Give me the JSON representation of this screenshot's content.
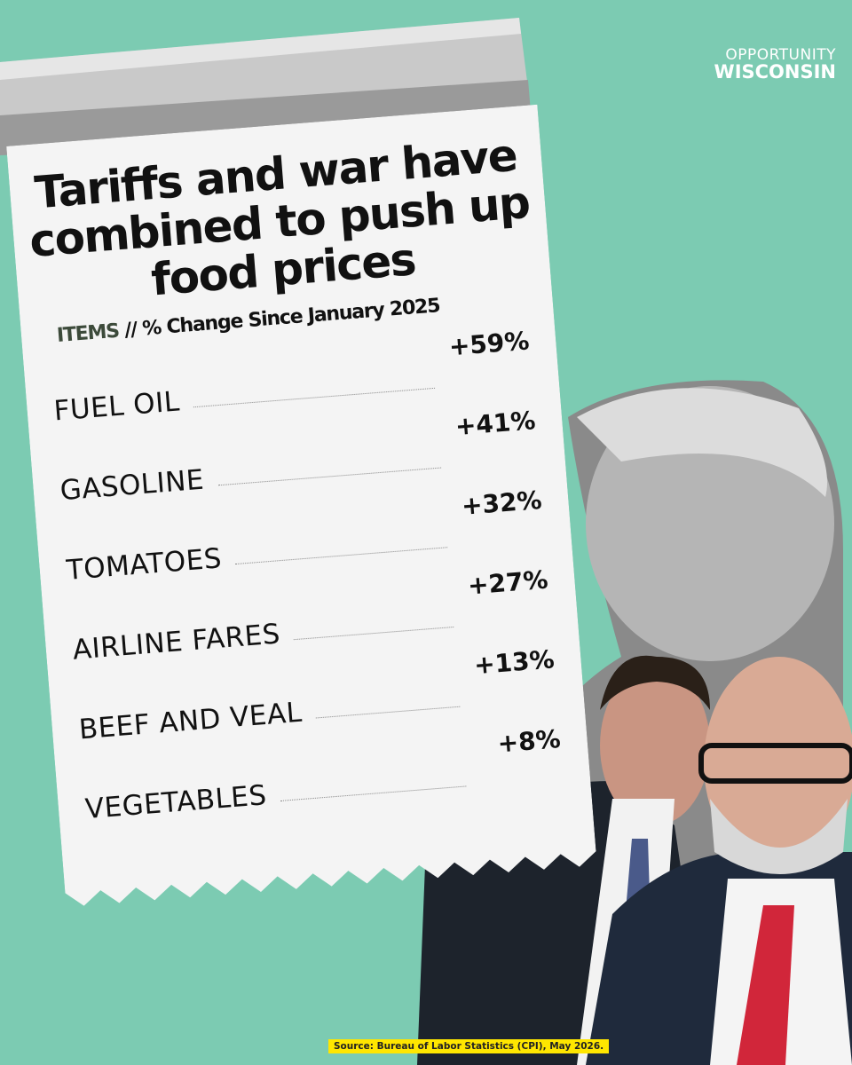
{
  "header": {
    "title_lines": [
      "Tariffs and war have",
      "combined to push up",
      "food prices"
    ],
    "items_label": "ITEMS",
    "separator": "//",
    "subtitle": "% Change Since January 2025"
  },
  "items": [
    {
      "label": "FUEL OIL",
      "change": "+59%"
    },
    {
      "label": "GASOLINE",
      "change": "+41%"
    },
    {
      "label": "TOMATOES",
      "change": "+32%"
    },
    {
      "label": "AIRLINE FARES",
      "change": "+27%"
    },
    {
      "label": "BEEF AND VEAL",
      "change": "+13%"
    },
    {
      "label": "VEGETABLES",
      "change": "+8%"
    }
  ],
  "brand": {
    "line1": "OPPORTUNITY",
    "line2": "WISCONSIN"
  },
  "source": "Source: Bureau of Labor Statistics (CPI), May 2026."
}
